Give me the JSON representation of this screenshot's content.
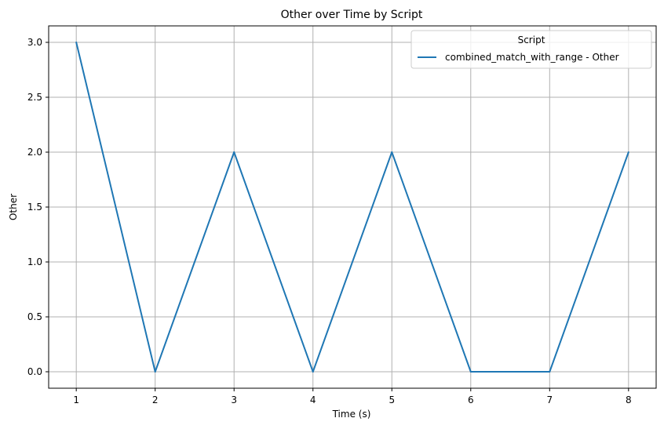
{
  "chart_data": {
    "type": "line",
    "title": "Other over Time by Script",
    "xlabel": "Time (s)",
    "ylabel": "Other",
    "x": [
      1,
      2,
      3,
      4,
      5,
      6,
      7,
      8
    ],
    "xticks": [
      "1",
      "2",
      "3",
      "4",
      "5",
      "6",
      "7",
      "8"
    ],
    "yticks": [
      "0.0",
      "0.5",
      "1.0",
      "1.5",
      "2.0",
      "2.5",
      "3.0"
    ],
    "xlim": [
      0.65,
      8.35
    ],
    "ylim": [
      -0.15,
      3.15
    ],
    "grid": true,
    "legend": {
      "title": "Script",
      "placement": "top-right"
    },
    "series": [
      {
        "name": "combined_match_with_range - Other",
        "color": "#1f77b4",
        "values": [
          3,
          0,
          2,
          0,
          2,
          0,
          0,
          2
        ]
      }
    ]
  }
}
